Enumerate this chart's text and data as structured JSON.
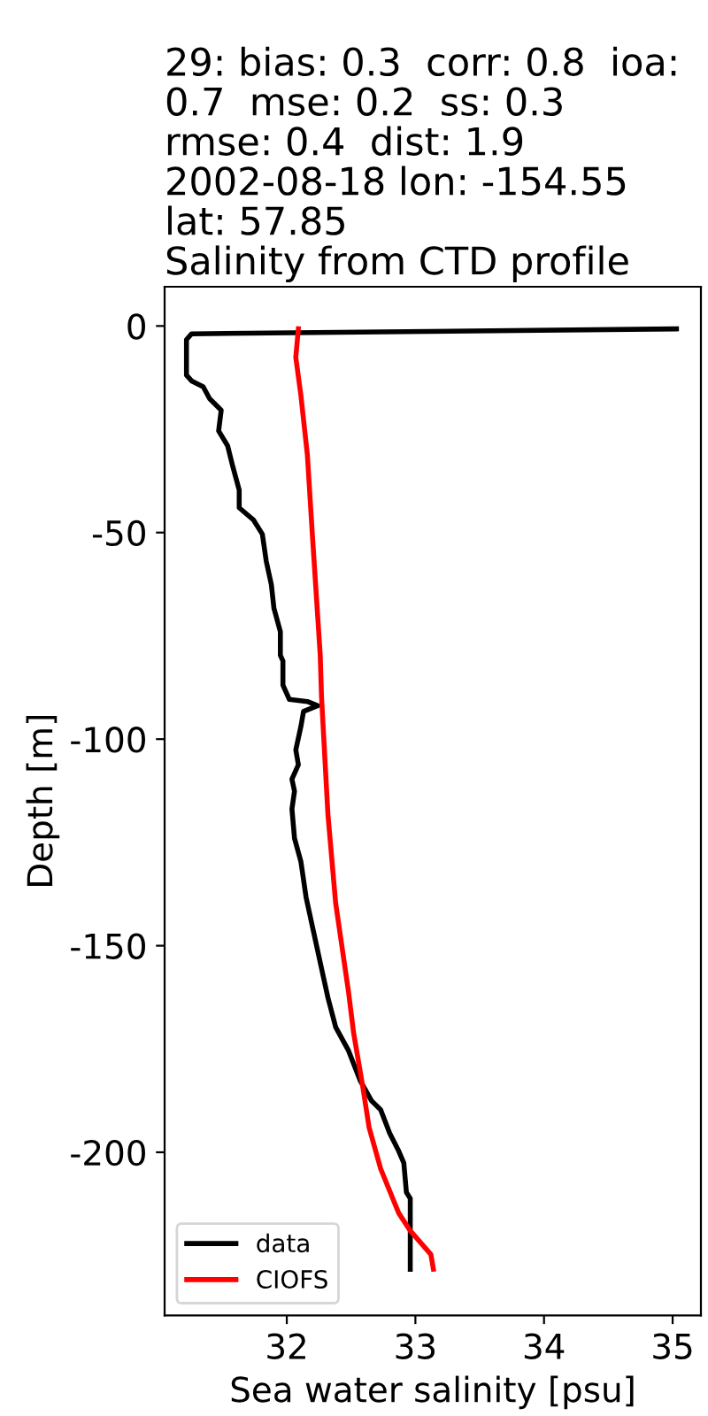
{
  "chart_data": {
    "type": "line",
    "title": "29: bias: 0.3  corr: 0.8  ioa:\n0.7  mse: 0.2  ss: 0.3\nrmse: 0.4  dist: 1.9\n2002-08-18 lon: -154.55\nlat: 57.85\nSalinity from CTD profile",
    "xlabel": "Sea water salinity [psu]",
    "ylabel": "Depth [m]",
    "series": [
      {
        "name": "data",
        "color": "#000000",
        "x": [
          35.03,
          31.26,
          31.22,
          31.22,
          31.26,
          31.35,
          31.4,
          31.49,
          31.47,
          31.54,
          31.58,
          31.63,
          31.63,
          31.74,
          31.81,
          31.84,
          31.88,
          31.9,
          31.95,
          31.95,
          31.97,
          31.97,
          32.02,
          32.16,
          32.24,
          32.13,
          32.11,
          32.07,
          32.09,
          32.04,
          32.06,
          32.04,
          32.06,
          32.11,
          32.15,
          32.21,
          32.27,
          32.32,
          32.38,
          32.48,
          32.57,
          32.66,
          32.73,
          32.8,
          32.87,
          32.91,
          32.93,
          32.96,
          32.96
        ],
        "values": [
          -0.7,
          -1.9,
          -3.3,
          -11.9,
          -13.3,
          -14.7,
          -17.6,
          -20.4,
          -25.4,
          -29.0,
          -34.0,
          -39.7,
          -44.0,
          -46.9,
          -50.4,
          -56.9,
          -62.6,
          -68.3,
          -74.0,
          -79.7,
          -81.1,
          -86.9,
          -90.4,
          -90.9,
          -91.9,
          -93.3,
          -96.9,
          -102.6,
          -106.2,
          -109.7,
          -112.6,
          -116.9,
          -124.0,
          -129.7,
          -138.3,
          -146.9,
          -155.5,
          -162.6,
          -169.7,
          -175.4,
          -182.6,
          -187.6,
          -189.7,
          -195.4,
          -199.7,
          -202.6,
          -209.7,
          -211.2,
          -228.3
        ]
      },
      {
        "name": "CIOFS",
        "color": "#ff0000",
        "x": [
          32.09,
          32.07,
          32.11,
          32.16,
          32.2,
          32.26,
          32.27,
          32.32,
          32.38,
          32.48,
          32.52,
          32.59,
          32.64,
          32.73,
          32.87,
          32.96,
          33.12,
          33.14
        ],
        "values": [
          -0.7,
          -7.6,
          -16.9,
          -31.2,
          -51.1,
          -79.7,
          -89.7,
          -118.3,
          -139.7,
          -161.2,
          -171.2,
          -184.0,
          -194.0,
          -204.0,
          -214.7,
          -219.0,
          -224.7,
          -228.3
        ]
      }
    ],
    "xlim": [
      31.05,
      35.22
    ],
    "ylim": [
      -239.5,
      9.5
    ],
    "xticks": [
      32,
      33,
      34,
      35
    ],
    "yticks": [
      0,
      -50,
      -100,
      -150,
      -200
    ],
    "legend": "lower left",
    "line_style": "solid",
    "marker": "none",
    "grid": false
  }
}
